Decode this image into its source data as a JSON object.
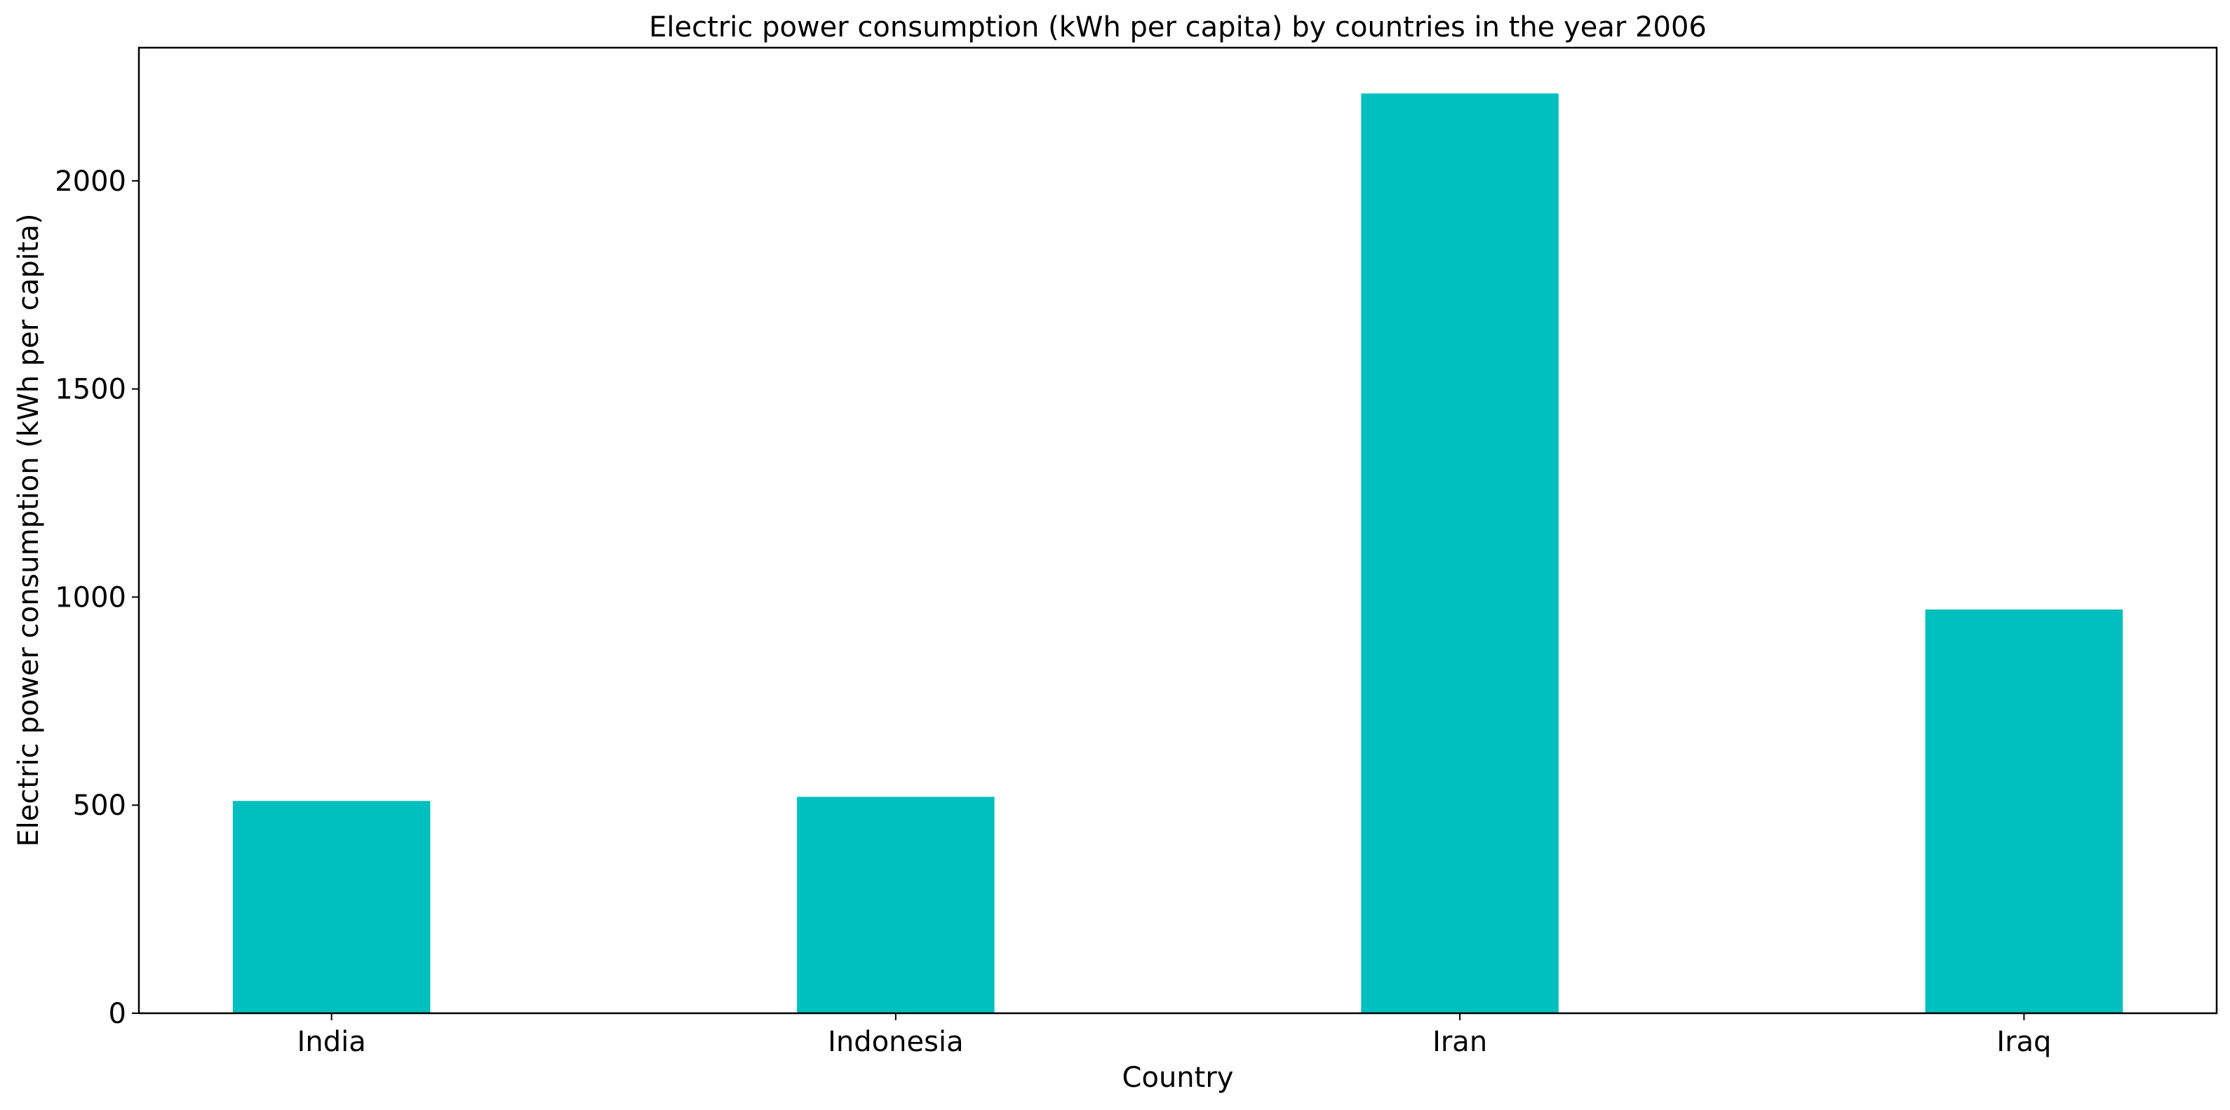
{
  "chart_data": {
    "type": "bar",
    "title": "Electric power consumption (kWh per capita) by countries in the year 2006",
    "xlabel": "Country",
    "ylabel": "Electric power consumption (kWh per capita)",
    "categories": [
      "India",
      "Indonesia",
      "Iran",
      "Iraq"
    ],
    "values": [
      510,
      520,
      2210,
      970
    ],
    "ylim": [
      0,
      2320
    ],
    "yticks": [
      0,
      500,
      1000,
      1500,
      2000
    ],
    "ytick_labels": [
      "0",
      "500",
      "1000",
      "1500",
      "2000"
    ],
    "bar_color": "#00BFBF",
    "grid": false,
    "legend": "none"
  }
}
